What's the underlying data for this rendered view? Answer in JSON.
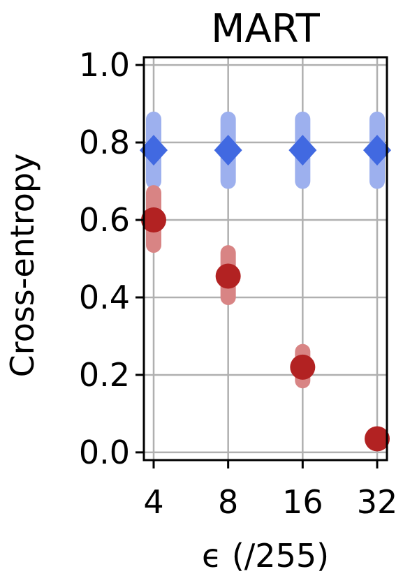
{
  "chart_data": {
    "type": "scatter",
    "title": "MART",
    "xlabel": "ϵ (/255)",
    "ylabel": "Cross-entropy",
    "categories": [
      "4",
      "8",
      "16",
      "32"
    ],
    "ylim": [
      -0.02,
      1.02
    ],
    "yticks": [
      "0.0",
      "0.2",
      "0.4",
      "0.6",
      "0.8",
      "1.0"
    ],
    "grid": true,
    "series": [
      {
        "marker": "diamond",
        "color": "#4169e1",
        "error_color": "#9db0ee",
        "values": [
          0.78,
          0.78,
          0.78,
          0.78
        ],
        "err_low": [
          0.7,
          0.7,
          0.7,
          0.7
        ],
        "err_high": [
          0.86,
          0.86,
          0.86,
          0.86
        ]
      },
      {
        "marker": "circle",
        "color": "#b22222",
        "error_color": "#d88484",
        "values": [
          0.6,
          0.455,
          0.22,
          0.035
        ],
        "err_low": [
          0.535,
          0.4,
          0.185,
          0.035
        ],
        "err_high": [
          0.67,
          0.515,
          0.26,
          0.035
        ]
      }
    ]
  }
}
